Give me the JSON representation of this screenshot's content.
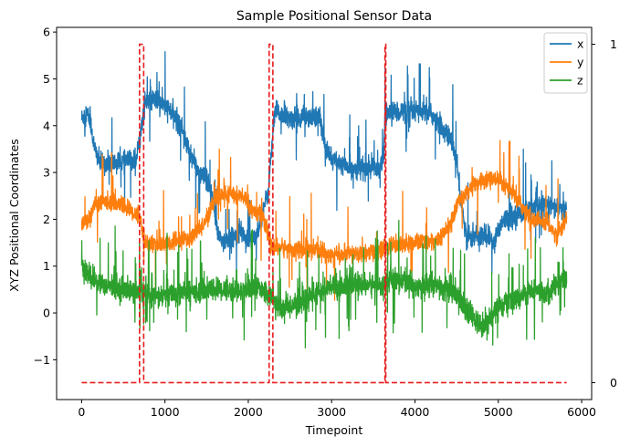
{
  "chart_data": {
    "type": "line",
    "title": "Sample Positional Sensor Data",
    "xlabel": "Timepoint",
    "ylabel": "XYZ Positional Coordinates",
    "xlim": [
      -300,
      6120
    ],
    "ylim": [
      -1.85,
      6.1
    ],
    "xticks": [
      0,
      1000,
      2000,
      3000,
      4000,
      5000,
      6000
    ],
    "yticks": [
      -1,
      0,
      1,
      2,
      3,
      4,
      5,
      6
    ],
    "ytick_labels": [
      "−1",
      "0",
      "1",
      "2",
      "3",
      "4",
      "5",
      "6"
    ],
    "secondary_y": {
      "ylim": [
        -0.05,
        1.05
      ],
      "ticks": [
        0,
        1
      ],
      "tick_labels": [
        "0",
        "1"
      ]
    },
    "legend": {
      "position": "top-right",
      "entries": [
        "x",
        "y",
        "z"
      ]
    },
    "grid": false,
    "series": [
      {
        "name": "x",
        "color": "#1f77b4",
        "noise": 0.11,
        "spike": 0.04,
        "points": [
          [
            0,
            4.15
          ],
          [
            60,
            4.3
          ],
          [
            110,
            4.05
          ],
          [
            150,
            3.55
          ],
          [
            220,
            3.2
          ],
          [
            400,
            3.2
          ],
          [
            560,
            3.25
          ],
          [
            650,
            3.25
          ],
          [
            700,
            3.75
          ],
          [
            760,
            4.5
          ],
          [
            900,
            4.55
          ],
          [
            1050,
            4.35
          ],
          [
            1200,
            4.0
          ],
          [
            1260,
            3.6
          ],
          [
            1400,
            3.0
          ],
          [
            1500,
            2.85
          ],
          [
            1560,
            2.5
          ],
          [
            1620,
            1.8
          ],
          [
            1700,
            1.5
          ],
          [
            1800,
            1.6
          ],
          [
            1900,
            1.8
          ],
          [
            2000,
            1.5
          ],
          [
            2100,
            1.7
          ],
          [
            2180,
            2.2
          ],
          [
            2240,
            2.6
          ],
          [
            2280,
            3.5
          ],
          [
            2320,
            4.3
          ],
          [
            2500,
            4.15
          ],
          [
            2700,
            4.2
          ],
          [
            2850,
            4.2
          ],
          [
            2920,
            3.6
          ],
          [
            3000,
            3.3
          ],
          [
            3200,
            3.1
          ],
          [
            3400,
            3.1
          ],
          [
            3550,
            3.1
          ],
          [
            3620,
            3.2
          ],
          [
            3640,
            4.2
          ],
          [
            3700,
            4.3
          ],
          [
            4000,
            4.3
          ],
          [
            4200,
            4.25
          ],
          [
            4300,
            4.0
          ],
          [
            4450,
            3.65
          ],
          [
            4500,
            3.2
          ],
          [
            4560,
            2.3
          ],
          [
            4620,
            1.6
          ],
          [
            4800,
            1.65
          ],
          [
            4950,
            1.55
          ],
          [
            5050,
            2.0
          ],
          [
            5300,
            2.15
          ],
          [
            5500,
            2.3
          ],
          [
            5700,
            2.25
          ],
          [
            5820,
            2.2
          ]
        ]
      },
      {
        "name": "y",
        "color": "#ff7f0e",
        "noise": 0.09,
        "spike": 0.03,
        "points": [
          [
            0,
            1.85
          ],
          [
            50,
            2.0
          ],
          [
            100,
            2.0
          ],
          [
            150,
            2.3
          ],
          [
            300,
            2.4
          ],
          [
            500,
            2.3
          ],
          [
            650,
            2.1
          ],
          [
            700,
            2.05
          ],
          [
            760,
            1.5
          ],
          [
            900,
            1.45
          ],
          [
            1100,
            1.5
          ],
          [
            1300,
            1.6
          ],
          [
            1400,
            1.75
          ],
          [
            1500,
            2.0
          ],
          [
            1600,
            2.45
          ],
          [
            1800,
            2.55
          ],
          [
            1950,
            2.45
          ],
          [
            2050,
            2.2
          ],
          [
            2150,
            2.1
          ],
          [
            2220,
            1.8
          ],
          [
            2280,
            1.4
          ],
          [
            2400,
            1.4
          ],
          [
            2600,
            1.35
          ],
          [
            2800,
            1.35
          ],
          [
            3000,
            1.25
          ],
          [
            3200,
            1.25
          ],
          [
            3500,
            1.3
          ],
          [
            3640,
            1.35
          ],
          [
            3700,
            1.45
          ],
          [
            4000,
            1.5
          ],
          [
            4300,
            1.55
          ],
          [
            4400,
            1.85
          ],
          [
            4450,
            2.0
          ],
          [
            4550,
            2.5
          ],
          [
            4700,
            2.7
          ],
          [
            4900,
            2.9
          ],
          [
            5000,
            2.8
          ],
          [
            5150,
            2.6
          ],
          [
            5400,
            2.0
          ],
          [
            5600,
            1.9
          ],
          [
            5700,
            1.65
          ],
          [
            5820,
            2.0
          ]
        ]
      },
      {
        "name": "z",
        "color": "#2ca02c",
        "noise": 0.12,
        "spike": 0.05,
        "points": [
          [
            0,
            1.05
          ],
          [
            50,
            0.9
          ],
          [
            100,
            0.75
          ],
          [
            200,
            0.65
          ],
          [
            400,
            0.55
          ],
          [
            600,
            0.45
          ],
          [
            760,
            0.45
          ],
          [
            900,
            0.35
          ],
          [
            1100,
            0.4
          ],
          [
            1300,
            0.45
          ],
          [
            1500,
            0.5
          ],
          [
            1700,
            0.5
          ],
          [
            1900,
            0.45
          ],
          [
            2100,
            0.55
          ],
          [
            2280,
            0.35
          ],
          [
            2400,
            0.1
          ],
          [
            2600,
            0.2
          ],
          [
            2800,
            0.4
          ],
          [
            3000,
            0.55
          ],
          [
            3200,
            0.6
          ],
          [
            3400,
            0.6
          ],
          [
            3640,
            0.6
          ],
          [
            3700,
            0.75
          ],
          [
            4000,
            0.6
          ],
          [
            4300,
            0.55
          ],
          [
            4500,
            0.4
          ],
          [
            4600,
            0.1
          ],
          [
            4700,
            -0.1
          ],
          [
            4800,
            -0.3
          ],
          [
            4900,
            -0.1
          ],
          [
            5000,
            0.15
          ],
          [
            5200,
            0.3
          ],
          [
            5400,
            0.45
          ],
          [
            5600,
            0.45
          ],
          [
            5820,
            0.8
          ]
        ]
      }
    ],
    "events": {
      "name": "events",
      "color": "#e81c1c",
      "axis": "secondary",
      "baseline": 0,
      "x_range": [
        0,
        5820
      ],
      "pulses": [
        [
          695,
          745
        ],
        [
          2250,
          2295
        ],
        [
          3640,
          3650
        ]
      ]
    }
  }
}
